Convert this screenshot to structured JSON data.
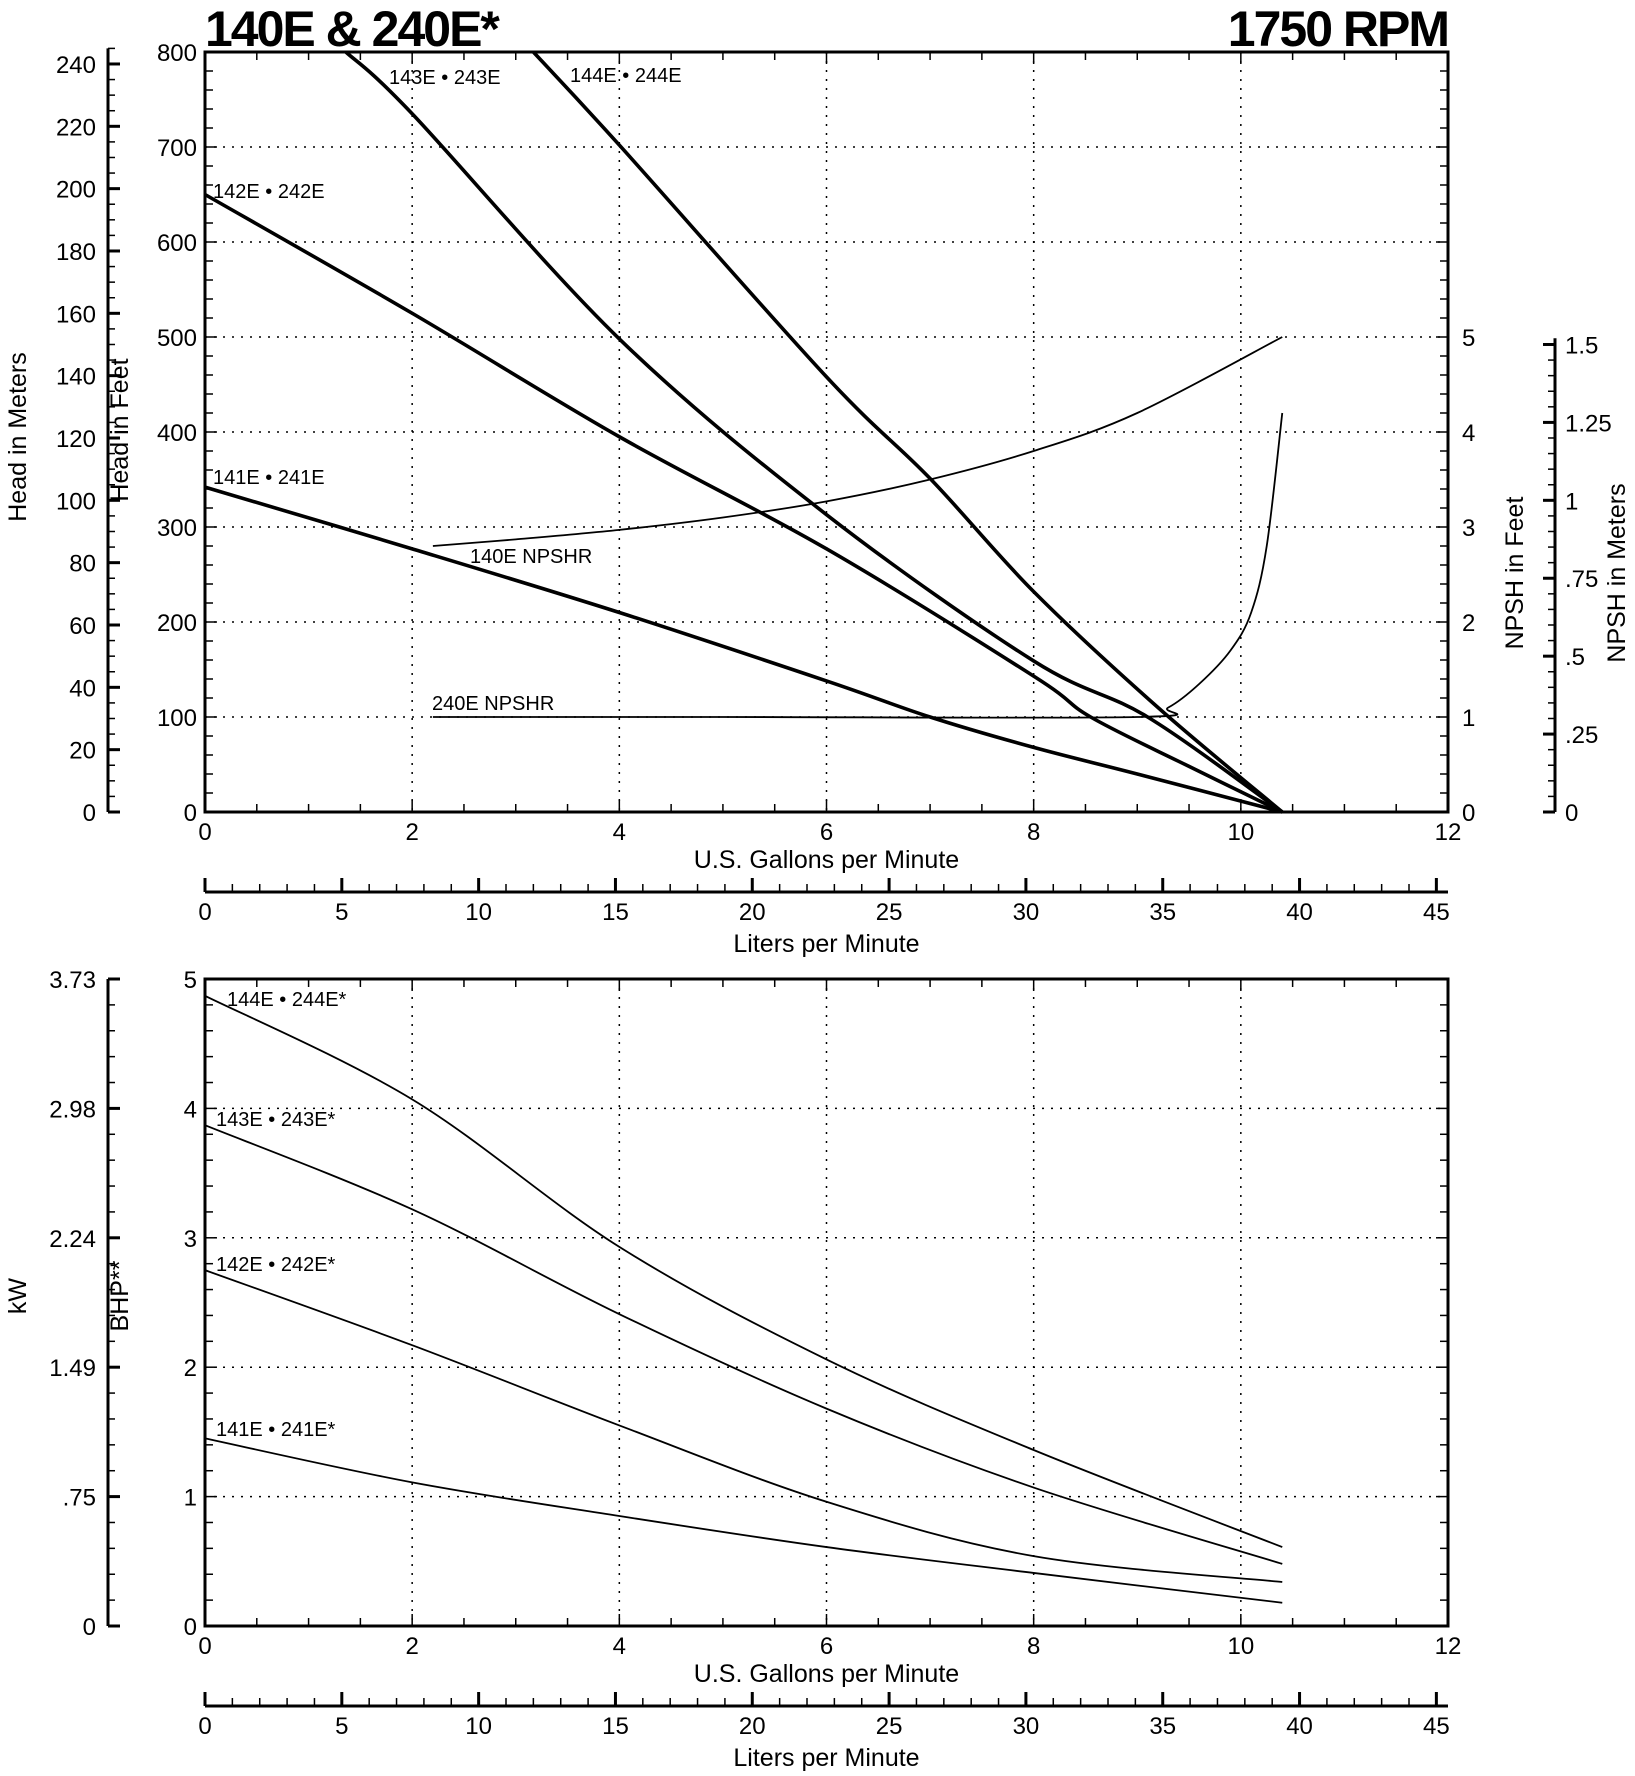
{
  "title_left": "140E & 240E*",
  "title_right": "1750 RPM",
  "chart_data": [
    {
      "type": "line",
      "xlabel": "U.S. Gallons per Minute",
      "xlim": [
        0,
        12
      ],
      "xticks": [
        0,
        2,
        4,
        6,
        8,
        10,
        12
      ],
      "x2label": "Liters per Minute",
      "x2ticks": [
        0,
        5,
        10,
        15,
        20,
        25,
        30,
        35,
        40,
        45
      ],
      "ylabel": "Head in Feet",
      "ylim": [
        0,
        800
      ],
      "yticks": [
        0,
        100,
        200,
        300,
        400,
        500,
        600,
        700,
        800
      ],
      "y2label": "Head in Meters",
      "y2ticks": [
        0,
        20,
        40,
        60,
        80,
        100,
        120,
        140,
        160,
        180,
        200,
        220,
        240
      ],
      "y3label": "NPSH in Feet",
      "y3ticks": [
        0,
        1,
        2,
        3,
        4,
        5
      ],
      "y4label": "NPSH in Meters",
      "y4ticks": [
        "0",
        ".25",
        ".5",
        ".75",
        "1",
        "1.25",
        "1.5"
      ],
      "grid": true,
      "series": [
        {
          "name": "141E • 241E",
          "kind": "head",
          "x": [
            0,
            2,
            4,
            6,
            7,
            8,
            9,
            10.4
          ],
          "y": [
            342,
            277,
            210,
            138,
            100,
            68,
            40,
            0
          ]
        },
        {
          "name": "142E • 242E",
          "kind": "head",
          "x": [
            0,
            2,
            4,
            6,
            8,
            8.55,
            9.5,
            10.4
          ],
          "y": [
            650,
            525,
            395,
            277,
            143,
            100,
            48,
            0
          ]
        },
        {
          "name": "143E • 243E",
          "kind": "head",
          "x": [
            1.36,
            2,
            4,
            6,
            8,
            9.1,
            10.4
          ],
          "y": [
            800,
            735,
            498,
            313,
            159,
            100,
            0
          ]
        },
        {
          "name": "144E • 244E",
          "kind": "head",
          "x": [
            3.17,
            4,
            6,
            7,
            8,
            9.2,
            10.4
          ],
          "y": [
            800,
            702,
            458,
            351,
            232,
            110,
            0
          ]
        },
        {
          "name": "140E NPSHR",
          "kind": "npsh",
          "x": [
            2.2,
            3,
            4,
            5,
            6,
            7,
            8,
            9,
            10.4
          ],
          "y": [
            2.8,
            2.87,
            2.97,
            3.1,
            3.27,
            3.5,
            3.8,
            4.2,
            5.0
          ]
        },
        {
          "name": "240E NPSHR",
          "kind": "npsh",
          "x": [
            2.2,
            5,
            9.0,
            9.3,
            9.6,
            9.9,
            10.1,
            10.25,
            10.4
          ],
          "y": [
            1.0,
            1.0,
            1.0,
            1.1,
            1.35,
            1.7,
            2.1,
            2.8,
            4.2
          ]
        }
      ]
    },
    {
      "type": "line",
      "xlabel": "U.S. Gallons per Minute",
      "xlim": [
        0,
        12
      ],
      "xticks": [
        0,
        2,
        4,
        6,
        8,
        10,
        12
      ],
      "x2label": "Liters per Minute",
      "x2ticks": [
        0,
        5,
        10,
        15,
        20,
        25,
        30,
        35,
        40,
        45
      ],
      "ylabel": "BHP**",
      "ylim": [
        0,
        5
      ],
      "yticks": [
        0,
        1,
        2,
        3,
        4,
        5
      ],
      "y2label": "kW",
      "y2ticks": [
        "0",
        ".75",
        "1.49",
        "2.24",
        "2.98",
        "3.73"
      ],
      "grid": true,
      "series": [
        {
          "name": "144E • 244E*",
          "x": [
            0,
            2,
            4,
            6,
            8,
            10.4
          ],
          "y": [
            4.87,
            4.07,
            2.93,
            2.06,
            1.36,
            0.61
          ]
        },
        {
          "name": "143E • 243E*",
          "x": [
            0,
            2,
            4,
            6,
            8,
            10.4
          ],
          "y": [
            3.87,
            3.22,
            2.41,
            1.68,
            1.07,
            0.48
          ]
        },
        {
          "name": "142E • 242E*",
          "x": [
            0,
            2,
            4,
            6,
            8,
            10.4
          ],
          "y": [
            2.75,
            2.17,
            1.55,
            0.96,
            0.54,
            0.34
          ]
        },
        {
          "name": "141E • 241E*",
          "x": [
            0,
            2,
            4,
            6,
            8,
            10.4
          ],
          "y": [
            1.45,
            1.11,
            0.85,
            0.61,
            0.41,
            0.18
          ]
        }
      ]
    }
  ]
}
